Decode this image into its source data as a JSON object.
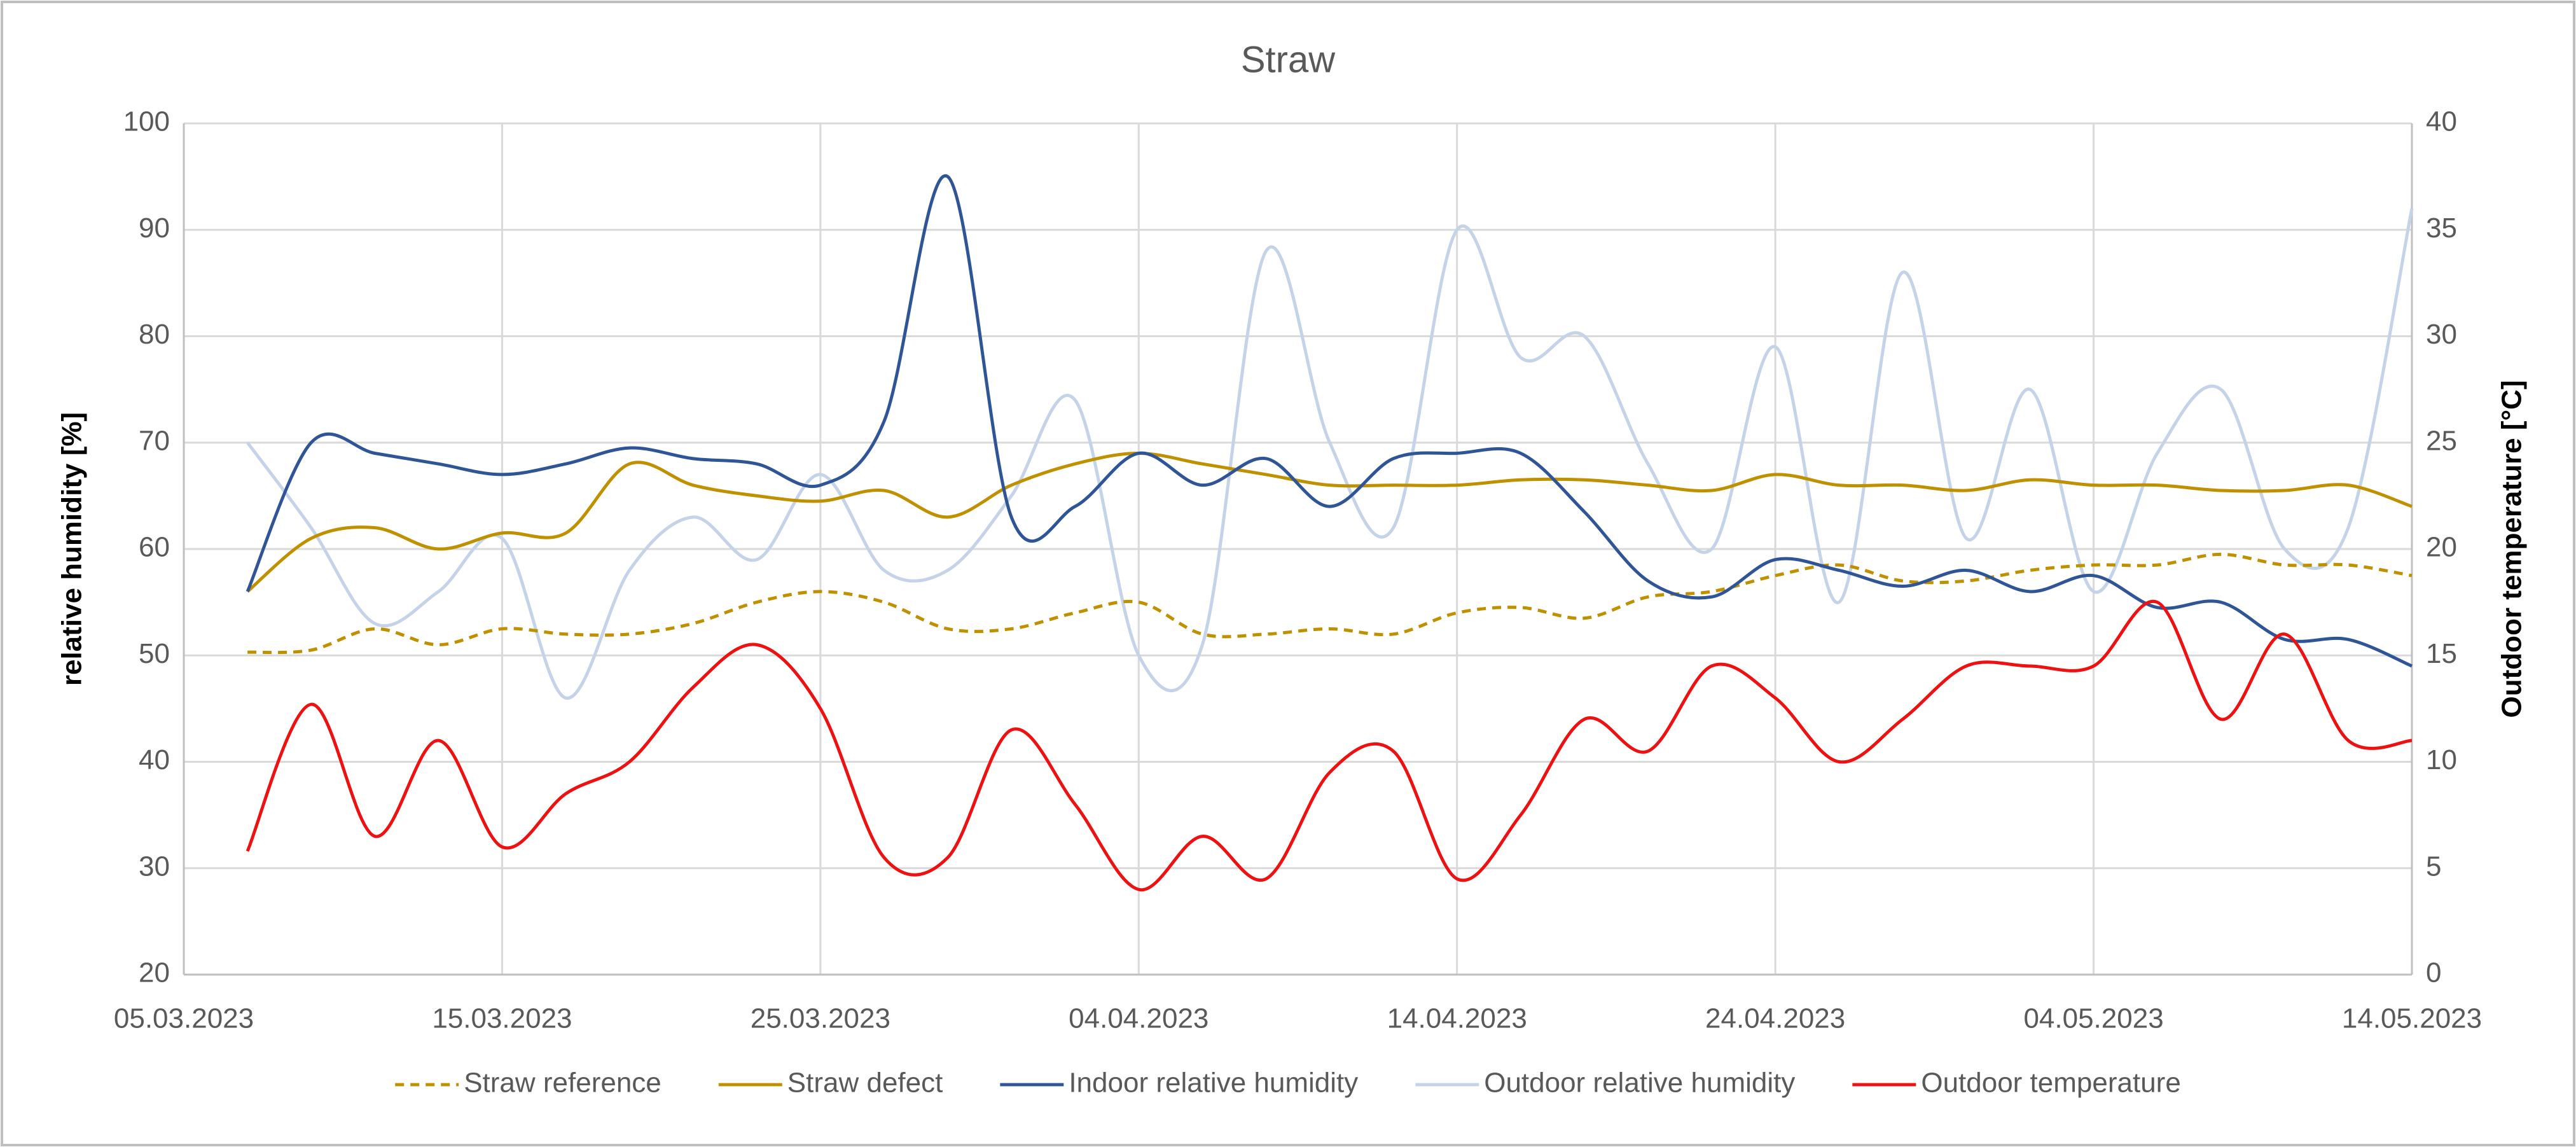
{
  "chart_data": {
    "type": "line",
    "title": "Straw",
    "y_label": "relative humidity [%]",
    "y2_label": "Outdoor temperature [°C]",
    "x": [
      "07.03.2023",
      "09.03.2023",
      "11.03.2023",
      "13.03.2023",
      "15.03.2023",
      "17.03.2023",
      "19.03.2023",
      "21.03.2023",
      "23.03.2023",
      "25.03.2023",
      "27.03.2023",
      "29.03.2023",
      "31.03.2023",
      "02.04.2023",
      "04.04.2023",
      "06.04.2023",
      "08.04.2023",
      "10.04.2023",
      "12.04.2023",
      "14.04.2023",
      "16.04.2023",
      "18.04.2023",
      "20.04.2023",
      "22.04.2023",
      "24.04.2023",
      "26.04.2023",
      "28.04.2023",
      "30.04.2023",
      "02.05.2023",
      "04.05.2023",
      "06.05.2023",
      "08.05.2023",
      "10.05.2023",
      "12.05.2023",
      "14.05.2023"
    ],
    "xlim": [
      "05.03.2023",
      "14.05.2023"
    ],
    "xticks": [
      "05.03.2023",
      "15.03.2023",
      "25.03.2023",
      "04.04.2023",
      "14.04.2023",
      "24.04.2023",
      "04.05.2023",
      "14.05.2023"
    ],
    "ylim": [
      20,
      100
    ],
    "yticks": [
      20,
      30,
      40,
      50,
      60,
      70,
      80,
      90,
      100
    ],
    "y2lim": [
      0,
      40
    ],
    "y2ticks": [
      0,
      5,
      10,
      15,
      20,
      25,
      30,
      35,
      40
    ],
    "grid": true,
    "legend": "bottom",
    "series": [
      {
        "name": "Straw reference",
        "color": "#bf9000",
        "dashed": true,
        "values": [
          50.3,
          50.5,
          52.5,
          51,
          52.5,
          52,
          52,
          53,
          55,
          56,
          55,
          52.5,
          52.5,
          54,
          55,
          52,
          52,
          52.5,
          52,
          54,
          54.5,
          53.5,
          55.5,
          56,
          57.5,
          58.5,
          57,
          57,
          58,
          58.5,
          58.5,
          59.5,
          58.5,
          58.5,
          57.5
        ]
      },
      {
        "name": "Straw defect",
        "color": "#bf9000",
        "values": [
          56,
          61,
          62,
          60,
          61.5,
          61.5,
          68,
          66,
          65,
          64.5,
          65.5,
          63,
          66,
          68,
          69,
          68,
          67,
          66,
          66,
          66,
          66.5,
          66.5,
          66,
          65.5,
          67,
          66,
          66,
          65.5,
          66.5,
          66,
          66,
          65.5,
          65.5,
          66,
          64
        ]
      },
      {
        "name": "Indoor relative humidity",
        "color": "#2f5597",
        "values": [
          56,
          70,
          69,
          68,
          67,
          68,
          69.5,
          68.5,
          68,
          66,
          72,
          95,
          63,
          64,
          69,
          66,
          68.5,
          64,
          68.5,
          69,
          69,
          63.5,
          57,
          55.5,
          59,
          58,
          56.5,
          58,
          56,
          57.5,
          54.5,
          55,
          51.5,
          51.5,
          49
        ]
      },
      {
        "name": "Outdoor relative humidity",
        "color": "#c5d3e8",
        "values": [
          70,
          62,
          53,
          56,
          61,
          46,
          58,
          63,
          59,
          67,
          58,
          58,
          65,
          74,
          50,
          51,
          88,
          70,
          62,
          90,
          78,
          80,
          68,
          60,
          79,
          55,
          86,
          61,
          75,
          56,
          69,
          75,
          60,
          62,
          92
        ]
      },
      {
        "name": "Outdoor temperature",
        "color": "#ee1111",
        "axis": "y2",
        "values": [
          5.8,
          12.7,
          6.5,
          11,
          6,
          8.5,
          10,
          13.5,
          15.5,
          12.5,
          5.5,
          5.5,
          11.5,
          8,
          4,
          6.5,
          4.5,
          9.5,
          10.5,
          4.5,
          7.5,
          12,
          10.5,
          14.5,
          13,
          10,
          12,
          14.5,
          14.5,
          14.5,
          17.5,
          12,
          16,
          11,
          11
        ]
      }
    ]
  }
}
